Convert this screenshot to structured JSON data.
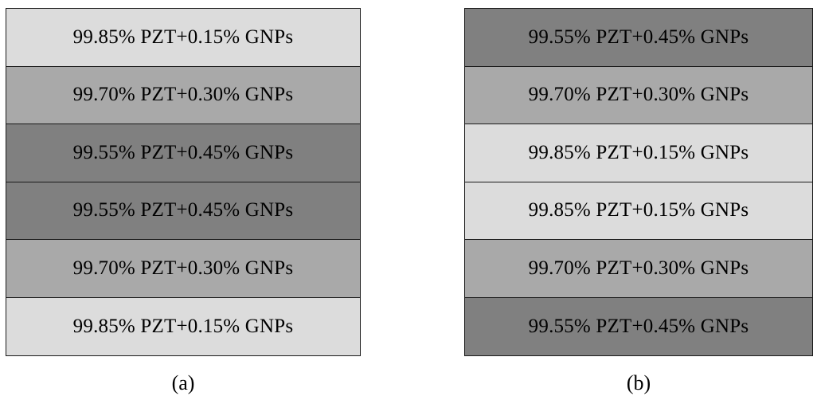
{
  "palette": {
    "light": "#dcdcdc",
    "medium": "#a9a9a9",
    "dark": "#808080"
  },
  "stack_a": {
    "caption": "(a)",
    "layers": [
      {
        "label": "99.85% PZT+0.15% GNPs",
        "shade": "light"
      },
      {
        "label": "99.70% PZT+0.30% GNPs",
        "shade": "medium"
      },
      {
        "label": "99.55% PZT+0.45% GNPs",
        "shade": "dark"
      },
      {
        "label": "99.55% PZT+0.45% GNPs",
        "shade": "dark"
      },
      {
        "label": "99.70% PZT+0.30% GNPs",
        "shade": "medium"
      },
      {
        "label": "99.85% PZT+0.15% GNPs",
        "shade": "light"
      }
    ]
  },
  "stack_b": {
    "caption": "(b)",
    "layers": [
      {
        "label": "99.55% PZT+0.45% GNPs",
        "shade": "dark"
      },
      {
        "label": "99.70% PZT+0.30% GNPs",
        "shade": "medium"
      },
      {
        "label": "99.85% PZT+0.15% GNPs",
        "shade": "light"
      },
      {
        "label": "99.85% PZT+0.15% GNPs",
        "shade": "light"
      },
      {
        "label": "99.70% PZT+0.30% GNPs",
        "shade": "medium"
      },
      {
        "label": "99.55% PZT+0.45% GNPs",
        "shade": "dark"
      }
    ]
  }
}
